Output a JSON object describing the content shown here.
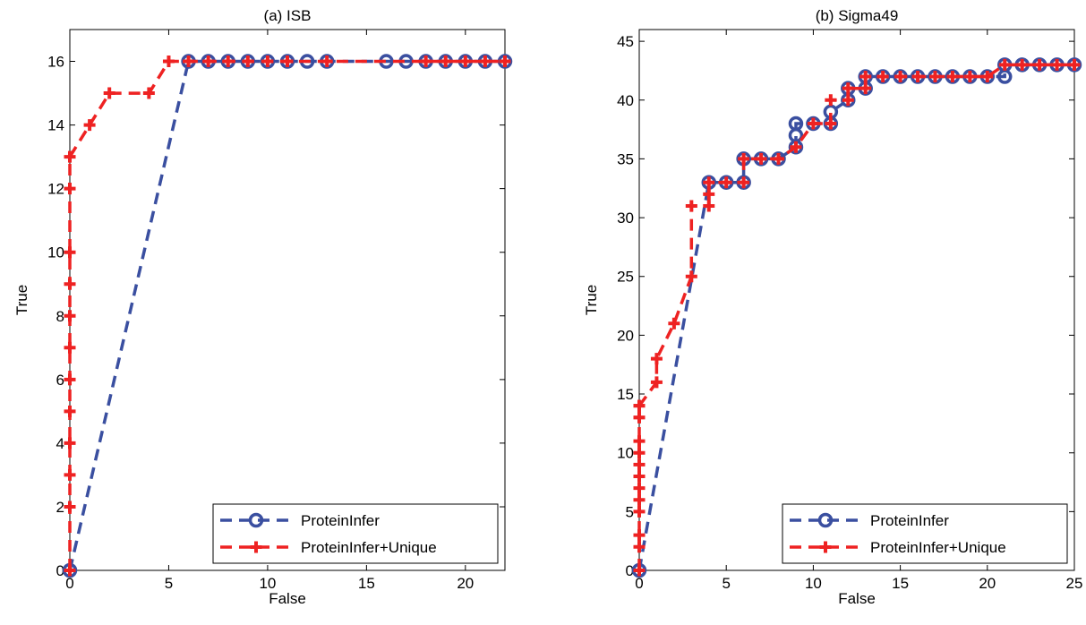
{
  "colors": {
    "protein_infer": "#3a4fa0",
    "protein_infer_unique": "#ee2222"
  },
  "chart_data": [
    {
      "type": "line",
      "title": "(a) ISB",
      "xlabel": "False",
      "ylabel": "True",
      "xlim": [
        0,
        22
      ],
      "ylim": [
        0,
        17
      ],
      "xticks": [
        0,
        5,
        10,
        15,
        20
      ],
      "yticks": [
        0,
        2,
        4,
        6,
        8,
        10,
        12,
        14,
        16
      ],
      "grid": false,
      "legend_position": "bottom-right",
      "series": [
        {
          "name": "ProteinInfer",
          "marker": "circle",
          "x": [
            0,
            6,
            7,
            8,
            9,
            10,
            11,
            12,
            13,
            16,
            17,
            18,
            19,
            20,
            21,
            22
          ],
          "y": [
            0,
            16,
            16,
            16,
            16,
            16,
            16,
            16,
            16,
            16,
            16,
            16,
            16,
            16,
            16,
            16
          ]
        },
        {
          "name": "ProteinInfer+Unique",
          "marker": "plus",
          "x": [
            0,
            0,
            0,
            0,
            0,
            0,
            0,
            0,
            0,
            0,
            0,
            0,
            1,
            2,
            4,
            5,
            6,
            7,
            8,
            9,
            10,
            11,
            13,
            18,
            19,
            20,
            21,
            22
          ],
          "y": [
            0,
            2,
            3,
            4,
            5,
            6,
            7,
            8,
            9,
            10,
            12,
            13,
            14,
            15,
            15,
            16,
            16,
            16,
            16,
            16,
            16,
            16,
            16,
            16,
            16,
            16,
            16,
            16
          ]
        }
      ]
    },
    {
      "type": "line",
      "title": "(b) Sigma49",
      "xlabel": "False",
      "ylabel": "True",
      "xlim": [
        0,
        25
      ],
      "ylim": [
        0,
        46
      ],
      "xticks": [
        0,
        5,
        10,
        15,
        20,
        25
      ],
      "yticks": [
        0,
        5,
        10,
        15,
        20,
        25,
        30,
        35,
        40,
        45
      ],
      "grid": false,
      "legend_position": "bottom-right",
      "series": [
        {
          "name": "ProteinInfer",
          "marker": "circle",
          "x": [
            0,
            4,
            5,
            6,
            6,
            7,
            8,
            9,
            9,
            9,
            10,
            11,
            11,
            12,
            12,
            13,
            13,
            14,
            15,
            16,
            17,
            18,
            19,
            20,
            21,
            21,
            22,
            23,
            24,
            25
          ],
          "y": [
            0,
            33,
            33,
            33,
            35,
            35,
            35,
            36,
            37,
            38,
            38,
            38,
            39,
            40,
            41,
            41,
            42,
            42,
            42,
            42,
            42,
            42,
            42,
            42,
            42,
            43,
            43,
            43,
            43,
            43
          ]
        },
        {
          "name": "ProteinInfer+Unique",
          "marker": "plus",
          "x": [
            0,
            0,
            0,
            0,
            0,
            0,
            0,
            0,
            0,
            0,
            0,
            0,
            0,
            0,
            1,
            1,
            2,
            3,
            3,
            4,
            4,
            4,
            5,
            6,
            6,
            7,
            8,
            9,
            10,
            11,
            11,
            12,
            12,
            13,
            13,
            14,
            15,
            16,
            17,
            18,
            19,
            20,
            21,
            22,
            23,
            24,
            25
          ],
          "y": [
            0,
            2,
            3,
            5,
            6,
            7,
            8,
            9,
            10,
            11,
            13,
            14,
            13,
            14,
            16,
            18,
            21,
            25,
            31,
            31,
            32,
            33,
            33,
            33,
            35,
            35,
            35,
            36,
            38,
            38,
            40,
            40,
            41,
            41,
            42,
            42,
            42,
            42,
            42,
            42,
            42,
            42,
            43,
            43,
            43,
            43,
            43
          ]
        }
      ]
    }
  ]
}
